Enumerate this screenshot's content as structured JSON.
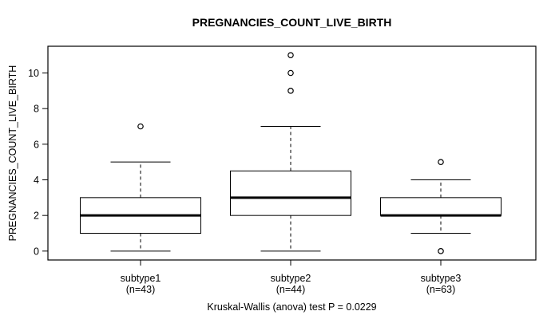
{
  "colors": {
    "foreground": "#000000",
    "background": "#ffffff"
  },
  "chart_data": {
    "type": "boxplot",
    "title": "PREGNANCIES_COUNT_LIVE_BIRTH",
    "ylabel": "PREGNANCIES_COUNT_LIVE_BIRTH",
    "xlabel": "",
    "annotation": "Kruskal-Wallis (anova) test P = 0.0229",
    "ylim": [
      -0.5,
      11.5
    ],
    "yticks": [
      0,
      2,
      4,
      6,
      8,
      10
    ],
    "grid": false,
    "legend": "none",
    "groups": [
      {
        "label": "subtype1",
        "sublabel": "(n=43)",
        "n": 43,
        "whisker_low": 0,
        "q1": 1,
        "median": 2,
        "q3": 3,
        "whisker_high": 5,
        "outliers": [
          7
        ]
      },
      {
        "label": "subtype2",
        "sublabel": "(n=44)",
        "n": 44,
        "whisker_low": 0,
        "q1": 2,
        "median": 3,
        "q3": 4.5,
        "whisker_high": 7,
        "outliers": [
          9,
          10,
          11
        ]
      },
      {
        "label": "subtype3",
        "sublabel": "(n=63)",
        "n": 63,
        "whisker_low": 1,
        "q1": 2,
        "median": 2,
        "q3": 3,
        "whisker_high": 4,
        "outliers": [
          5,
          0
        ]
      }
    ]
  }
}
